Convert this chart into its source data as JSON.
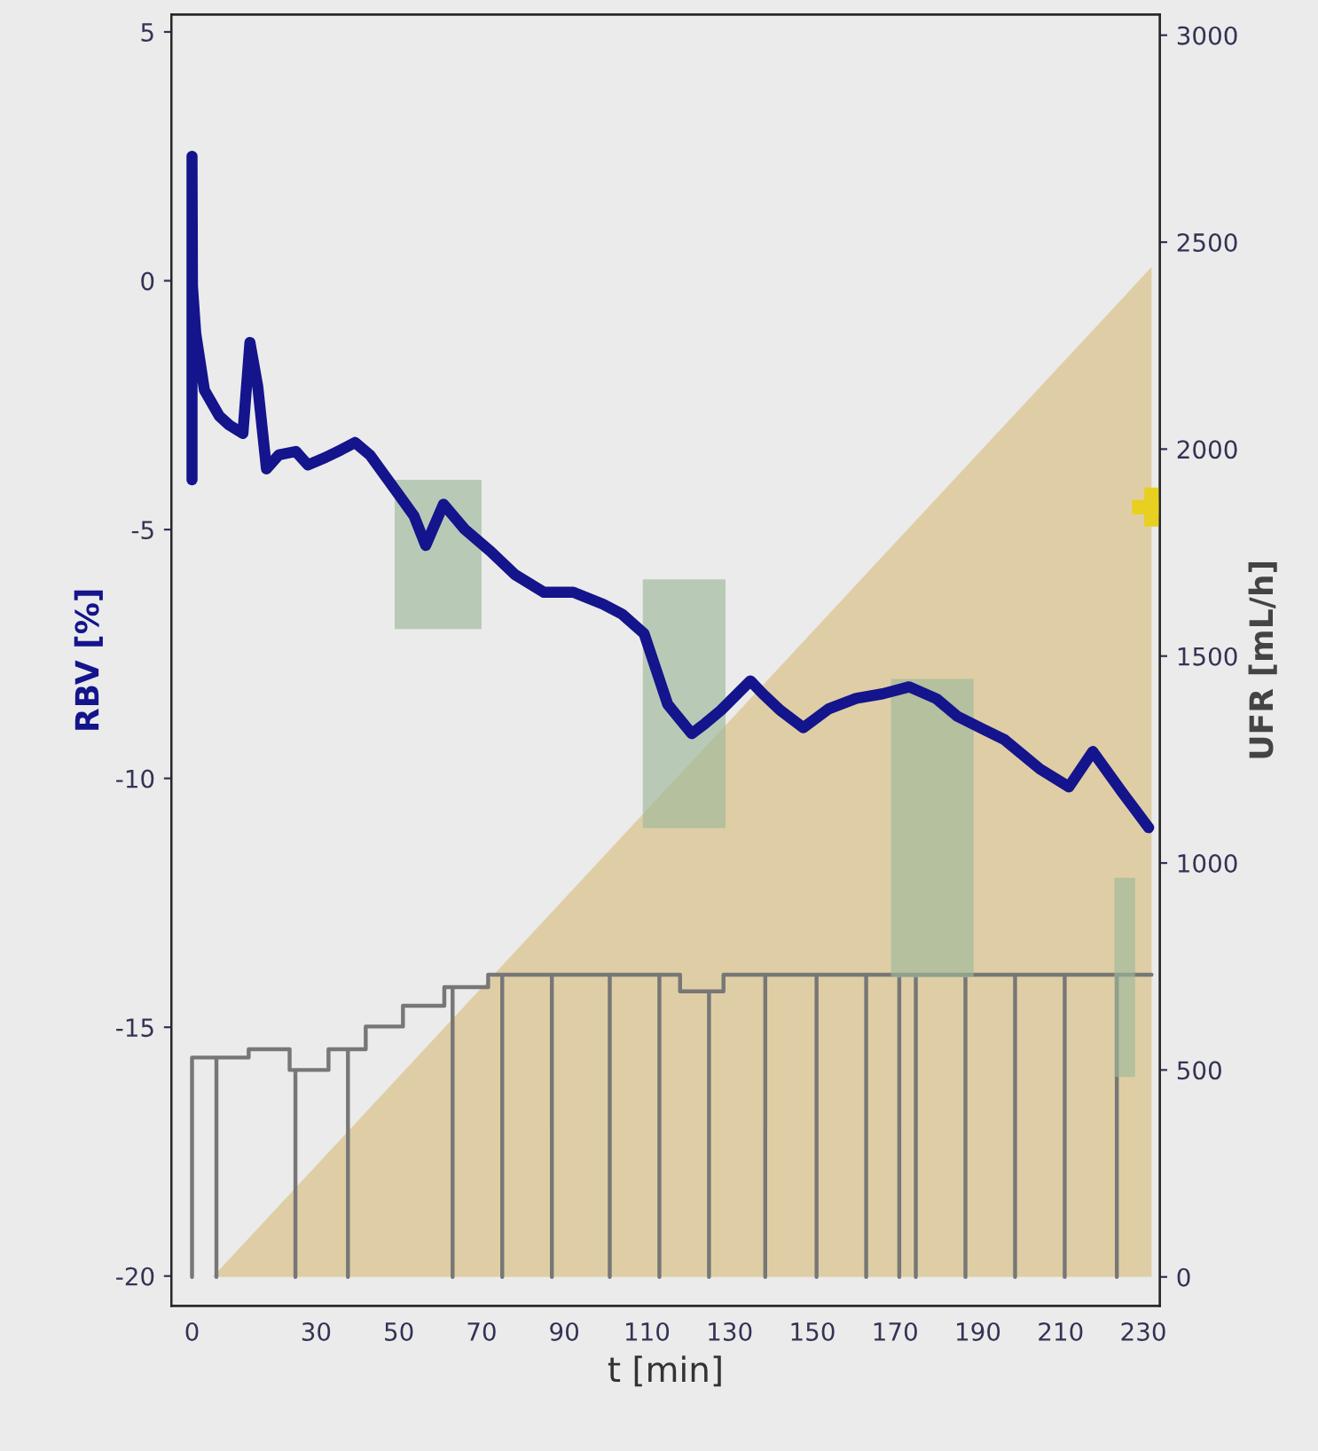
{
  "chart_data": {
    "type": "line",
    "xlabel": "t [min]",
    "ylabel": "RBV [%]",
    "y2label": "UFR [mL/h]",
    "xlim": [
      -5,
      234
    ],
    "xticks": [
      0,
      30,
      50,
      70,
      90,
      110,
      130,
      150,
      170,
      190,
      210,
      230
    ],
    "ylim": [
      -20.6,
      5.35
    ],
    "yticks": [
      -20,
      -15,
      -10,
      -5,
      0,
      5
    ],
    "y2lim": [
      -70,
      3050
    ],
    "y2ticks": [
      0,
      500,
      1000,
      1500,
      2000,
      2500,
      3000
    ],
    "grid": false,
    "legend": false,
    "series": [
      {
        "type": "area",
        "color": "#9cb99a",
        "x": [
          49,
          49,
          70,
          70
        ],
        "values": [
          -7,
          -4,
          -4,
          -7
        ]
      },
      {
        "type": "area",
        "color": "#9cb99a",
        "x": [
          109,
          109,
          129,
          129
        ],
        "values": [
          -11,
          -6,
          -6,
          -11
        ]
      },
      {
        "type": "area",
        "color": "#9cb99a",
        "x": [
          169,
          169,
          189,
          189
        ],
        "values": [
          -14,
          -8,
          -8,
          -14
        ]
      },
      {
        "type": "area",
        "color": "#9cb99a",
        "x": [
          223,
          223,
          228,
          228
        ],
        "values": [
          -16,
          -12,
          -12,
          -16
        ]
      },
      {
        "color": "#14148c",
        "x": [
          0,
          0,
          0.1,
          0.9,
          3,
          6.6,
          9,
          12.3,
          14,
          15.9,
          18,
          21,
          25.1,
          28,
          32.3,
          36,
          39.4,
          43,
          46.5,
          50,
          53.7,
          56.5,
          60.8,
          66,
          72.2,
          78,
          85.1,
          92.2,
          99.4,
          104,
          109.3,
          115,
          120.8,
          124,
          127.9,
          135,
          138,
          142.2,
          147.8,
          154,
          160.6,
          167,
          173.4,
          180,
          185,
          191,
          196.4,
          205,
          212,
          217.8,
          224.9,
          231.3
        ],
        "values": [
          -4.0,
          2.5,
          -0.1,
          -1.06,
          -2.2,
          -2.72,
          -2.9,
          -3.07,
          -1.24,
          -2.13,
          -3.78,
          -3.5,
          -3.43,
          -3.7,
          -3.55,
          -3.4,
          -3.25,
          -3.5,
          -3.9,
          -4.3,
          -4.73,
          -5.32,
          -4.49,
          -5.0,
          -5.44,
          -5.9,
          -6.26,
          -6.26,
          -6.5,
          -6.7,
          -7.09,
          -8.51,
          -9.1,
          -8.9,
          -8.63,
          -8.04,
          -8.3,
          -8.63,
          -8.98,
          -8.6,
          -8.39,
          -8.3,
          -8.16,
          -8.4,
          -8.75,
          -9.0,
          -9.22,
          -9.81,
          -10.17,
          -9.46,
          -10.28,
          -10.99
        ]
      },
      {
        "type": "area",
        "axis": "y2",
        "color": "#d9bf80",
        "x": [
          5,
          232,
          232
        ],
        "values": [
          0,
          2440,
          0
        ]
      },
      {
        "type": "line",
        "axis": "y2",
        "color": "#777777",
        "x": [
          0,
          0,
          5.9,
          5.9,
          5.9,
          13.7,
          13.7,
          23.6,
          23.6,
          25,
          25,
          25,
          33,
          33,
          37.7,
          37.7,
          37.7,
          42,
          42,
          51,
          51,
          61,
          61,
          63,
          63,
          63,
          71.6,
          71.6,
          75,
          75,
          75,
          87,
          87,
          87,
          101,
          101,
          101,
          113,
          113,
          113,
          118,
          118,
          125,
          125,
          125,
          128.5,
          128.5,
          138.6,
          138.6,
          138.6,
          151,
          151,
          151,
          163,
          163,
          163,
          171,
          171,
          171,
          175,
          175,
          175,
          187,
          187,
          187,
          199,
          199,
          199,
          211,
          211,
          211,
          223.6,
          223.6,
          223.6,
          232
        ],
        "values": [
          0,
          530,
          530,
          0,
          530,
          530,
          550,
          550,
          500,
          500,
          0,
          500,
          500,
          550,
          550,
          0,
          550,
          550,
          605,
          605,
          655,
          655,
          700,
          700,
          0,
          700,
          700,
          730,
          730,
          0,
          730,
          730,
          0,
          730,
          730,
          0,
          730,
          730,
          0,
          730,
          730,
          690,
          690,
          0,
          690,
          690,
          730,
          730,
          0,
          730,
          730,
          0,
          730,
          730,
          0,
          730,
          730,
          0,
          730,
          730,
          0,
          730,
          730,
          0,
          730,
          730,
          0,
          730,
          730,
          0,
          730,
          730,
          0,
          730,
          730
        ]
      },
      {
        "type": "scatter",
        "axis": "y2",
        "color": "#e8d020",
        "marker": "cross",
        "x": [
          232
        ],
        "values": [
          1860
        ]
      }
    ]
  }
}
